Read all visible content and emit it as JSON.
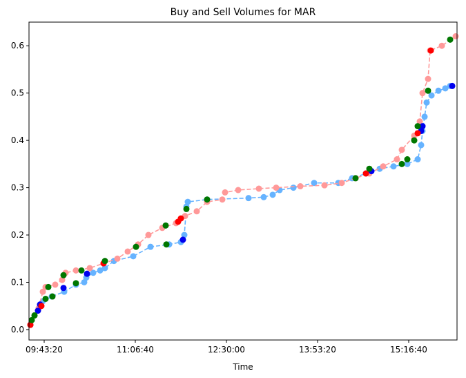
{
  "chart_data": {
    "type": "scatter",
    "title": "Buy and Sell Volumes for MAR",
    "xlabel": "Time",
    "xlim": [
      34167,
      57652
    ],
    "ylim": [
      -0.022,
      0.65
    ],
    "xticks": [
      {
        "value": 35000,
        "label": "09:43:20"
      },
      {
        "value": 40000,
        "label": "11:06:40"
      },
      {
        "value": 45000,
        "label": "12:30:00"
      },
      {
        "value": 50000,
        "label": "13:53:20"
      },
      {
        "value": 55000,
        "label": "15:16:40"
      }
    ],
    "yticks": [
      {
        "value": 0,
        "label": "0.0"
      },
      0.1,
      0.2,
      0.3,
      0.4,
      0.5,
      0.6
    ],
    "series": [
      {
        "color": "#66b3ff",
        "line": true,
        "x": [
          34243,
          34470,
          34697,
          34925,
          35417,
          36099,
          36743,
          37197,
          37311,
          37690,
          38069,
          38334,
          38826,
          39887,
          40834,
          41856,
          42501,
          42690,
          42804,
          42880,
          43940,
          46212,
          47046,
          47539,
          47917,
          48675,
          49811,
          51137,
          51895,
          52652,
          53410,
          54168,
          54925,
          55494,
          55683,
          55759,
          55873,
          55986,
          56252,
          56631,
          57010,
          57275
        ],
        "values": [
          0.01,
          0.03,
          0.045,
          0.06,
          0.07,
          0.08,
          0.095,
          0.1,
          0.11,
          0.12,
          0.125,
          0.13,
          0.145,
          0.155,
          0.175,
          0.18,
          0.185,
          0.2,
          0.26,
          0.27,
          0.275,
          0.278,
          0.28,
          0.285,
          0.295,
          0.3,
          0.31,
          0.31,
          0.32,
          0.33,
          0.34,
          0.345,
          0.35,
          0.36,
          0.39,
          0.42,
          0.45,
          0.48,
          0.495,
          0.505,
          0.51,
          0.515
        ]
      },
      {
        "color": "#ff9999",
        "line": true,
        "x": [
          34243,
          34470,
          34697,
          34925,
          35076,
          35606,
          35985,
          36175,
          36743,
          37501,
          38258,
          39016,
          39584,
          40152,
          40720,
          41478,
          42236,
          42728,
          43372,
          43940,
          44773,
          44925,
          45645,
          46781,
          47728,
          49054,
          50380,
          51327,
          52084,
          52842,
          53600,
          54357,
          54622,
          55304,
          55607,
          55759,
          56062,
          56176,
          56820,
          57578
        ],
        "values": [
          0.01,
          0.03,
          0.045,
          0.08,
          0.09,
          0.095,
          0.105,
          0.12,
          0.125,
          0.13,
          0.14,
          0.15,
          0.165,
          0.18,
          0.2,
          0.215,
          0.225,
          0.24,
          0.25,
          0.27,
          0.275,
          0.29,
          0.295,
          0.298,
          0.3,
          0.303,
          0.305,
          0.31,
          0.32,
          0.33,
          0.345,
          0.36,
          0.38,
          0.41,
          0.44,
          0.5,
          0.53,
          0.59,
          0.6,
          0.62
        ]
      },
      {
        "color": "#0000ee",
        "line": false,
        "x": [
          34659,
          34773,
          36061,
          37349,
          42614,
          52955,
          55683,
          55759,
          57389
        ],
        "values": [
          0.04,
          0.053,
          0.088,
          0.118,
          0.19,
          0.335,
          0.42,
          0.43,
          0.515
        ]
      },
      {
        "color": "#ff0000",
        "line": false,
        "x": [
          34243,
          34849,
          38258,
          42349,
          42501,
          52652,
          55494,
          56214
        ],
        "values": [
          0.01,
          0.05,
          0.14,
          0.228,
          0.235,
          0.33,
          0.415,
          0.59
        ]
      },
      {
        "color": "#007700",
        "line": false,
        "x": [
          34319,
          34470,
          35076,
          35228,
          35455,
          36061,
          36743,
          37046,
          38334,
          40038,
          41667,
          41705,
          42804,
          43940,
          52084,
          52842,
          54622,
          54925,
          55304,
          55494,
          56062,
          57275
        ],
        "values": [
          0.02,
          0.03,
          0.065,
          0.09,
          0.07,
          0.115,
          0.098,
          0.125,
          0.145,
          0.175,
          0.22,
          0.18,
          0.255,
          0.275,
          0.32,
          0.34,
          0.35,
          0.36,
          0.4,
          0.43,
          0.505,
          0.613
        ]
      }
    ]
  }
}
